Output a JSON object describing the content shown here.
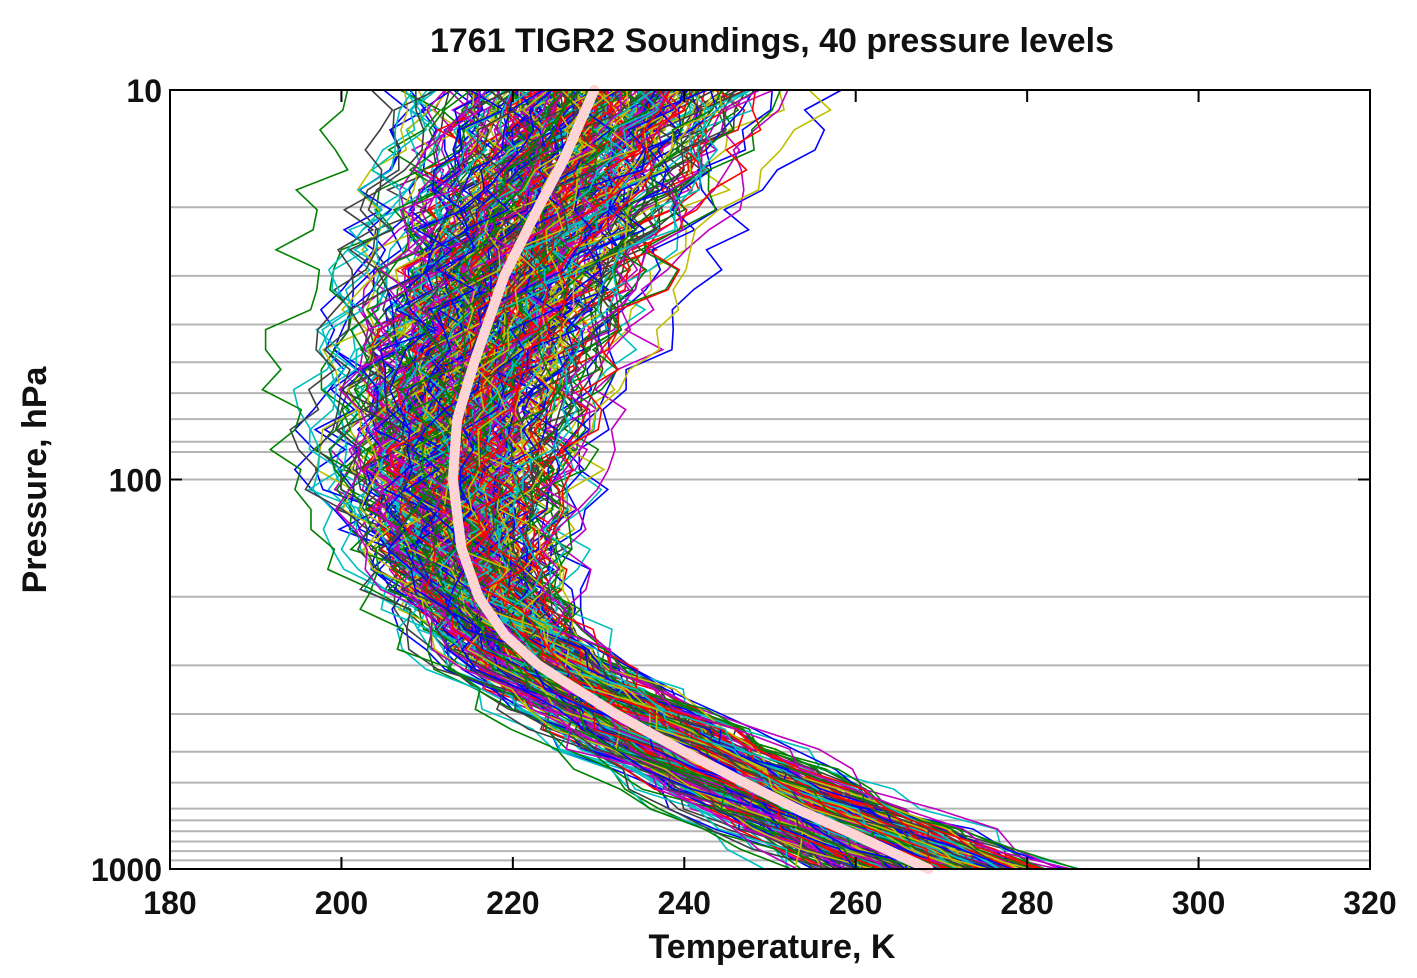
{
  "chart_data": {
    "type": "line",
    "title": "1761 TIGR2 Soundings, 40 pressure levels",
    "xlabel": "Temperature, K",
    "ylabel": "Pressure, hPa",
    "xlim": [
      180,
      320
    ],
    "ylim": [
      1000,
      10
    ],
    "y_scale": "log",
    "y_reversed": true,
    "x_ticks": [
      180,
      200,
      220,
      240,
      260,
      280,
      300,
      320
    ],
    "x_tick_labels": [
      "180",
      "200",
      "220",
      "240",
      "260",
      "280",
      "300",
      "320"
    ],
    "y_ticks": [
      10,
      100,
      1000
    ],
    "y_tick_labels": [
      "10",
      "100",
      "1000"
    ],
    "pressure_levels_with_gridlines": [
      20,
      30,
      40,
      50,
      60,
      70,
      80,
      85,
      100,
      200,
      300,
      400,
      500,
      600,
      700,
      750,
      800,
      850,
      900,
      950
    ],
    "grid": "horizontal",
    "legend": "none",
    "n_soundings": 1761,
    "n_levels": 40,
    "series_colors": [
      "#0000ff",
      "#008000",
      "#ff0000",
      "#00bfbf",
      "#bf00bf",
      "#bfbf00",
      "#404040"
    ],
    "mean_profile": {
      "color": "#ffd4d4",
      "points": [
        {
          "p": 10,
          "t": 229.5
        },
        {
          "p": 15,
          "t": 226
        },
        {
          "p": 20,
          "t": 223
        },
        {
          "p": 30,
          "t": 219
        },
        {
          "p": 50,
          "t": 215.5
        },
        {
          "p": 70,
          "t": 213.5
        },
        {
          "p": 100,
          "t": 213
        },
        {
          "p": 150,
          "t": 214
        },
        {
          "p": 200,
          "t": 216
        },
        {
          "p": 250,
          "t": 219
        },
        {
          "p": 300,
          "t": 223
        },
        {
          "p": 400,
          "t": 232
        },
        {
          "p": 500,
          "t": 240
        },
        {
          "p": 600,
          "t": 247
        },
        {
          "p": 700,
          "t": 253
        },
        {
          "p": 800,
          "t": 259
        },
        {
          "p": 900,
          "t": 264
        },
        {
          "p": 1000,
          "t": 268.5
        }
      ]
    }
  }
}
